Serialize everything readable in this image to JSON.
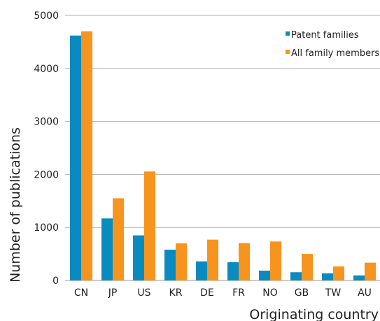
{
  "chart_data": {
    "type": "bar",
    "categories": [
      "CN",
      "JP",
      "US",
      "KR",
      "DE",
      "FR",
      "NO",
      "GB",
      "TW",
      "AU"
    ],
    "series": [
      {
        "name": "Patent families",
        "color": "#0a8bc0",
        "values": [
          4620,
          1170,
          850,
          580,
          360,
          345,
          185,
          155,
          135,
          95
        ]
      },
      {
        "name": "All family members",
        "color": "#f7941d",
        "values": [
          4700,
          1550,
          2055,
          700,
          770,
          705,
          735,
          500,
          265,
          335
        ]
      }
    ],
    "title": "",
    "xlabel": "Originating country",
    "ylabel": "Number of publications",
    "ylim": [
      0,
      5000
    ],
    "yticks": [
      0,
      1000,
      2000,
      3000,
      4000,
      5000
    ],
    "grid": true,
    "legend_position": "top-right"
  }
}
